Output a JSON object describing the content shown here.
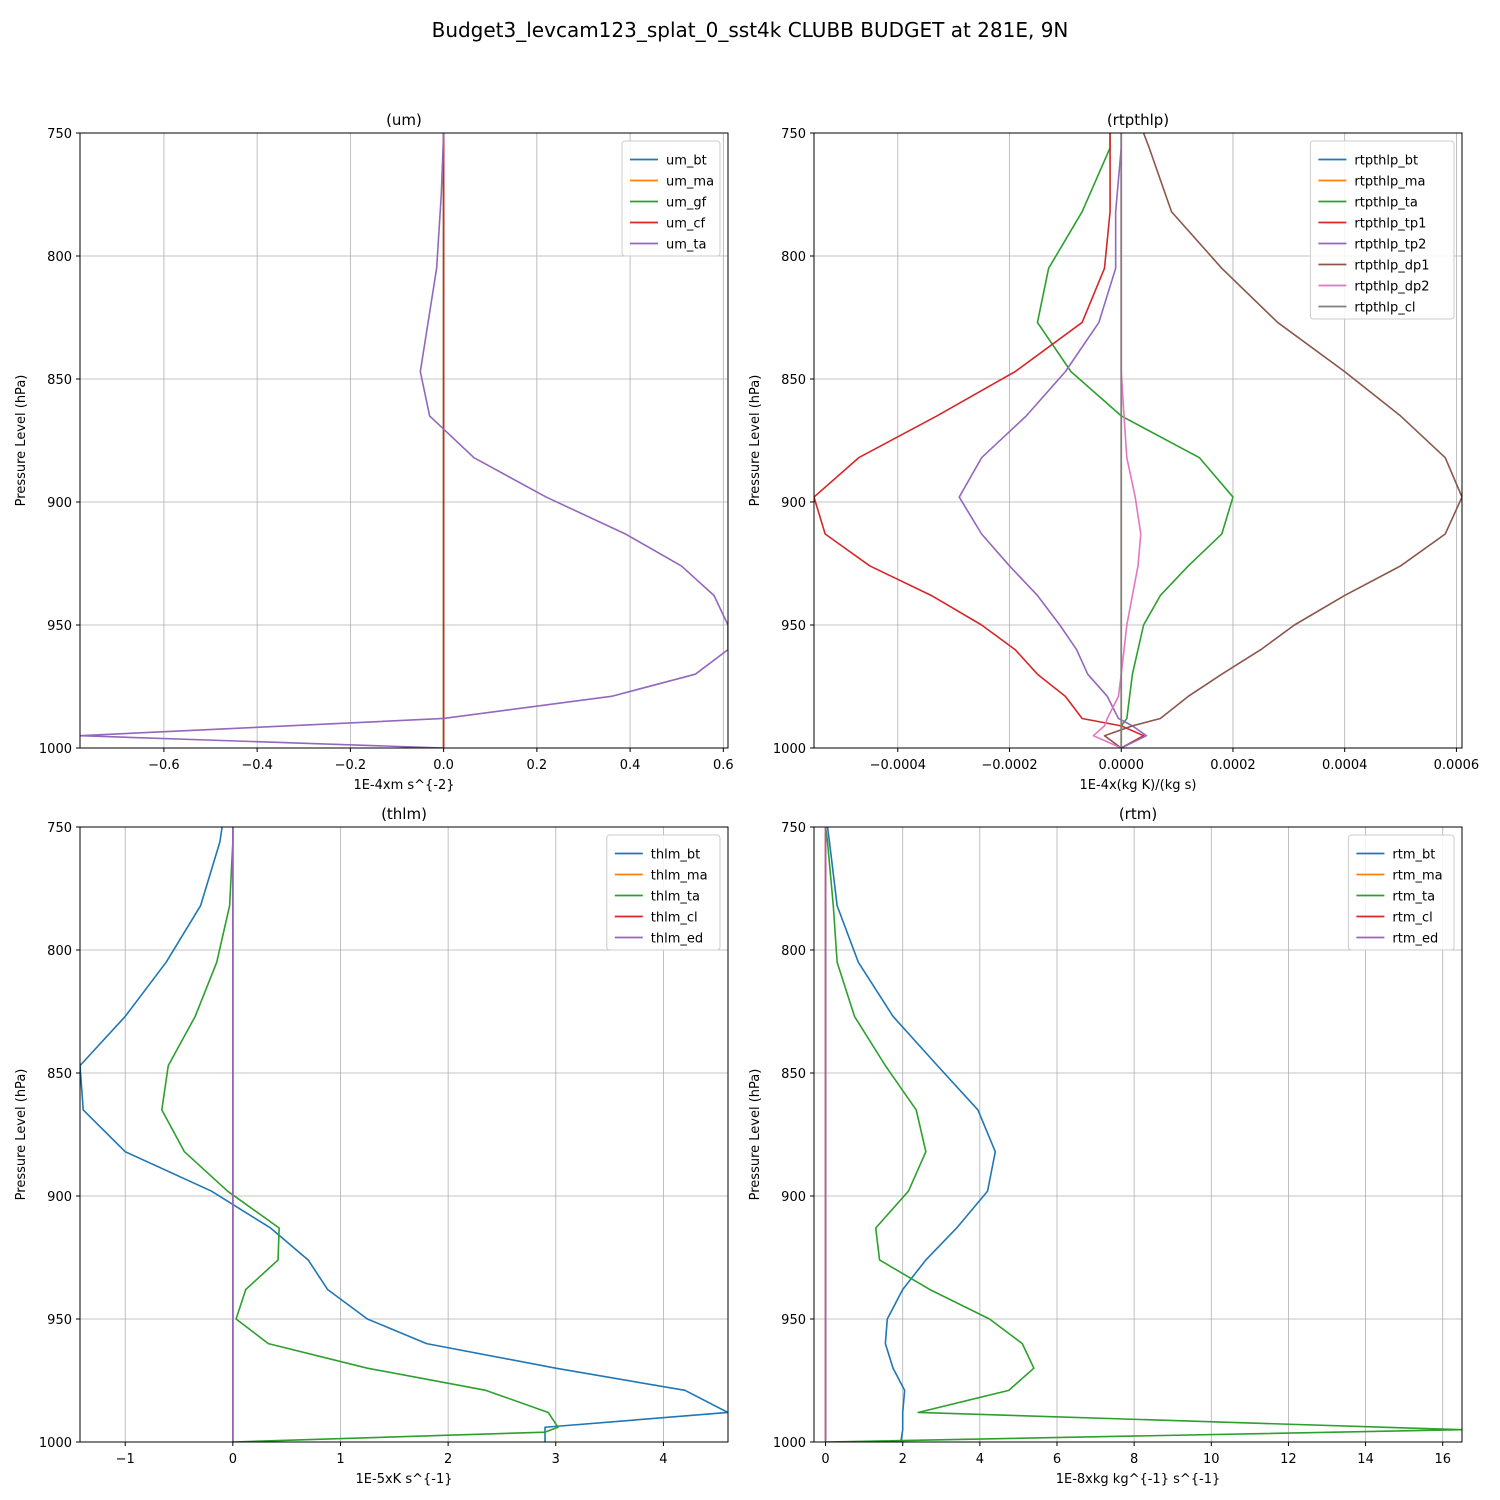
{
  "figure": {
    "title": "Budget3_levcam123_splat_0_sst4k CLUBB BUDGET at 281E, 9N"
  },
  "chart_data": [
    {
      "type": "line",
      "title": "(um)",
      "xlabel": "1E-4xm s^{-2}",
      "ylabel": "Pressure Level (hPa)",
      "xlim": [
        -0.78,
        0.61
      ],
      "ylim": [
        1000,
        750
      ],
      "xticks": [
        -0.6,
        -0.4,
        -0.2,
        0.0,
        0.2,
        0.4,
        0.6
      ],
      "xtick_labels": [
        "−0.6",
        "−0.4",
        "−0.2",
        "0.0",
        "0.2",
        "0.4",
        "0.6"
      ],
      "yticks": [
        750,
        800,
        850,
        900,
        950,
        1000
      ],
      "ytick_labels": [
        "750",
        "800",
        "850",
        "900",
        "950",
        "1000"
      ],
      "grid": true,
      "legend_position": "upper right",
      "pressure": [
        750,
        775,
        805,
        847,
        865,
        882,
        898,
        913,
        926,
        938,
        950,
        960,
        970,
        979,
        988,
        995,
        1000
      ],
      "series": [
        {
          "name": "um_bt",
          "color": "#1f77b4",
          "x": [
            0,
            0,
            0,
            0,
            0,
            0,
            0,
            0,
            0,
            0,
            0,
            0,
            0,
            0,
            0,
            0,
            0
          ]
        },
        {
          "name": "um_ma",
          "color": "#ff7f0e",
          "x": [
            0,
            0,
            0,
            0,
            0,
            0,
            0,
            0,
            0,
            0,
            0,
            0,
            0,
            0,
            0,
            0,
            0
          ]
        },
        {
          "name": "um_gf",
          "color": "#2ca02c",
          "x": [
            0,
            0,
            0,
            0,
            0,
            0,
            0,
            0,
            0,
            0,
            0,
            0,
            0,
            0,
            0,
            0,
            0
          ]
        },
        {
          "name": "um_cf",
          "color": "#d62728",
          "x": [
            0,
            0,
            0,
            0,
            0,
            0,
            0,
            0,
            0,
            0,
            0,
            0,
            0,
            0,
            0,
            0,
            0
          ]
        },
        {
          "name": "um_ta",
          "color": "#9467bd",
          "x": [
            0.0,
            -0.005,
            -0.015,
            -0.05,
            -0.03,
            0.065,
            0.22,
            0.39,
            0.51,
            0.58,
            0.61,
            0.61,
            0.54,
            0.36,
            0.0,
            -0.78,
            0.0
          ]
        }
      ]
    },
    {
      "type": "line",
      "title": "(rtpthlp)",
      "xlabel": "1E-4x(kg K)/(kg s)",
      "ylabel": "Pressure Level (hPa)",
      "xlim": [
        -0.00055,
        0.00061
      ],
      "ylim": [
        1000,
        750
      ],
      "xticks": [
        -0.0004,
        -0.0002,
        0.0,
        0.0002,
        0.0004,
        0.0006
      ],
      "xtick_labels": [
        "−0.0004",
        "−0.0002",
        "0.0000",
        "0.0002",
        "0.0004",
        "0.0006"
      ],
      "yticks": [
        750,
        800,
        850,
        900,
        950,
        1000
      ],
      "ytick_labels": [
        "750",
        "800",
        "850",
        "900",
        "950",
        "1000"
      ],
      "grid": true,
      "legend_position": "upper right",
      "pressure": [
        750,
        756,
        782,
        805,
        827,
        847,
        865,
        882,
        898,
        913,
        926,
        938,
        950,
        960,
        970,
        979,
        988,
        991,
        995,
        1000
      ],
      "series": [
        {
          "name": "rtpthlp_bt",
          "color": "#1f77b4",
          "x": [
            0,
            0,
            0,
            0,
            0,
            0,
            0,
            0,
            0,
            0,
            0,
            0,
            0,
            0,
            0,
            0,
            0,
            0,
            0,
            0
          ]
        },
        {
          "name": "rtpthlp_ma",
          "color": "#ff7f0e",
          "x": [
            0,
            0,
            0,
            0,
            0,
            0,
            0,
            0,
            0,
            0,
            0,
            0,
            0,
            0,
            0,
            0,
            0,
            0,
            0,
            0
          ]
        },
        {
          "name": "rtpthlp_ta",
          "color": "#2ca02c",
          "x": [
            -2e-05,
            -2e-05,
            -7e-05,
            -0.00013,
            -0.00015,
            -9e-05,
            0.0,
            0.00014,
            0.0002,
            0.00018,
            0.00012,
            7e-05,
            4e-05,
            3e-05,
            2e-05,
            1.5e-05,
            1e-05,
            0.0,
            0.0,
            0.0
          ]
        },
        {
          "name": "rtpthlp_tp1",
          "color": "#d62728",
          "x": [
            -2e-05,
            -2e-05,
            -2e-05,
            -3e-05,
            -7e-05,
            -0.00019,
            -0.00033,
            -0.00047,
            -0.00055,
            -0.00053,
            -0.00045,
            -0.00034,
            -0.00025,
            -0.00019,
            -0.00015,
            -0.0001,
            -7e-05,
            0.0,
            4e-05,
            0.0
          ]
        },
        {
          "name": "rtpthlp_tp2",
          "color": "#9467bd",
          "x": [
            0.0,
            0.0,
            -1e-05,
            -1e-05,
            -4e-05,
            -0.0001,
            -0.00017,
            -0.00025,
            -0.00029,
            -0.00025,
            -0.0002,
            -0.00015,
            -0.00011,
            -8e-05,
            -6e-05,
            -2.5e-05,
            -5e-06,
            2e-05,
            4.5e-05,
            0.0
          ]
        },
        {
          "name": "rtpthlp_dp1",
          "color": "#8c564b",
          "x": [
            4e-05,
            5e-05,
            9e-05,
            0.00018,
            0.00028,
            0.0004,
            0.0005,
            0.00058,
            0.00061,
            0.00058,
            0.0005,
            0.0004,
            0.00031,
            0.00025,
            0.00018,
            0.00012,
            7e-05,
            2e-05,
            -3e-05,
            0.0
          ]
        },
        {
          "name": "rtpthlp_dp2",
          "color": "#e377c2",
          "x": [
            0.0,
            0.0,
            0.0,
            0.0,
            0.0,
            0.0,
            5e-06,
            1e-05,
            2.5e-05,
            3.5e-05,
            3e-05,
            2e-05,
            1e-05,
            5e-06,
            0.0,
            -5e-06,
            -2.5e-05,
            -3e-05,
            -5e-05,
            0.0
          ]
        },
        {
          "name": "rtpthlp_cl",
          "color": "#7f7f7f",
          "x": [
            0,
            0,
            0,
            0,
            0,
            0,
            0,
            0,
            0,
            0,
            0,
            0,
            0,
            0,
            0,
            0,
            0,
            0,
            0,
            0
          ]
        }
      ]
    },
    {
      "type": "line",
      "title": "(thlm)",
      "xlabel": "1E-5xK s^{-1}",
      "ylabel": "Pressure Level (hPa)",
      "xlim": [
        -1.42,
        4.6
      ],
      "ylim": [
        1000,
        750
      ],
      "xticks": [
        -1,
        0,
        1,
        2,
        3,
        4
      ],
      "xtick_labels": [
        "−1",
        "0",
        "1",
        "2",
        "3",
        "4"
      ],
      "yticks": [
        750,
        800,
        850,
        900,
        950,
        1000
      ],
      "ytick_labels": [
        "750",
        "800",
        "850",
        "900",
        "950",
        "1000"
      ],
      "grid": true,
      "legend_position": "upper right",
      "pressure": [
        750,
        756,
        782,
        805,
        827,
        847,
        865,
        882,
        898,
        913,
        926,
        938,
        950,
        960,
        970,
        979,
        988,
        994,
        996,
        1000
      ],
      "series": [
        {
          "name": "thlm_bt",
          "color": "#1f77b4",
          "x": [
            -0.1,
            -0.12,
            -0.3,
            -0.62,
            -1.0,
            -1.42,
            -1.39,
            -1.0,
            -0.2,
            0.35,
            0.7,
            0.88,
            1.25,
            1.8,
            3.0,
            4.2,
            4.6,
            2.9,
            2.9,
            2.9
          ]
        },
        {
          "name": "thlm_ma",
          "color": "#ff7f0e",
          "x": [
            0,
            0,
            0,
            0,
            0,
            0,
            0,
            0,
            0,
            0,
            0,
            0,
            0,
            0,
            0,
            0,
            0,
            0,
            0,
            0
          ]
        },
        {
          "name": "thlm_ta",
          "color": "#2ca02c",
          "x": [
            0.0,
            0.0,
            -0.03,
            -0.15,
            -0.35,
            -0.6,
            -0.66,
            -0.45,
            -0.05,
            0.43,
            0.42,
            0.12,
            0.03,
            0.33,
            1.25,
            2.35,
            2.93,
            3.02,
            2.9,
            0.0
          ]
        },
        {
          "name": "thlm_cl",
          "color": "#d62728",
          "x": [
            0,
            0,
            0,
            0,
            0,
            0,
            0,
            0,
            0,
            0,
            0,
            0,
            0,
            0,
            0,
            0,
            0,
            0,
            0,
            0
          ]
        },
        {
          "name": "thlm_ed",
          "color": "#9467bd",
          "x": [
            0,
            0,
            0,
            0,
            0,
            0,
            0,
            0,
            0,
            0,
            0,
            0,
            0,
            0,
            0,
            0,
            0,
            0,
            0,
            0
          ]
        }
      ]
    },
    {
      "type": "line",
      "title": "(rtm)",
      "xlabel": "1E-8xkg kg^{-1} s^{-1}",
      "ylabel": "Pressure Level (hPa)",
      "xlim": [
        -0.3,
        16.5
      ],
      "ylim": [
        1000,
        750
      ],
      "xticks": [
        0,
        2,
        4,
        6,
        8,
        10,
        12,
        14,
        16
      ],
      "xtick_labels": [
        "0",
        "2",
        "4",
        "6",
        "8",
        "10",
        "12",
        "14",
        "16"
      ],
      "yticks": [
        750,
        800,
        850,
        900,
        950,
        1000
      ],
      "ytick_labels": [
        "750",
        "800",
        "850",
        "900",
        "950",
        "1000"
      ],
      "grid": true,
      "legend_position": "upper right",
      "pressure": [
        750,
        756,
        782,
        805,
        827,
        847,
        865,
        882,
        898,
        913,
        926,
        938,
        950,
        960,
        970,
        979,
        988,
        995,
        1000
      ],
      "series": [
        {
          "name": "rtm_bt",
          "color": "#1f77b4",
          "x": [
            0.05,
            0.1,
            0.3,
            0.85,
            1.75,
            2.9,
            3.95,
            4.4,
            4.2,
            3.4,
            2.6,
            2.0,
            1.6,
            1.55,
            1.75,
            2.05,
            2.0,
            2.0,
            1.95
          ]
        },
        {
          "name": "rtm_ma",
          "color": "#ff7f0e",
          "x": [
            0,
            0,
            0,
            0,
            0,
            0,
            0,
            0,
            0,
            0,
            0,
            0,
            0,
            0,
            0,
            0,
            0,
            0,
            0
          ]
        },
        {
          "name": "rtm_ta",
          "color": "#2ca02c",
          "x": [
            0.0,
            0.05,
            0.2,
            0.3,
            0.75,
            1.55,
            2.35,
            2.6,
            2.15,
            1.3,
            1.4,
            2.7,
            4.25,
            5.1,
            5.4,
            4.75,
            2.4,
            16.5,
            0.0
          ]
        },
        {
          "name": "rtm_cl",
          "color": "#d62728",
          "x": [
            0,
            0,
            0,
            0,
            0,
            0,
            0,
            0,
            0,
            0,
            0,
            0,
            0,
            0,
            0,
            0,
            0,
            0,
            0
          ]
        },
        {
          "name": "rtm_ed",
          "color": "#9467bd",
          "x": [
            0,
            0,
            0,
            0,
            0,
            0,
            0,
            0,
            0,
            0,
            0,
            0,
            0,
            0,
            0,
            0,
            0,
            0,
            0
          ]
        }
      ]
    }
  ]
}
